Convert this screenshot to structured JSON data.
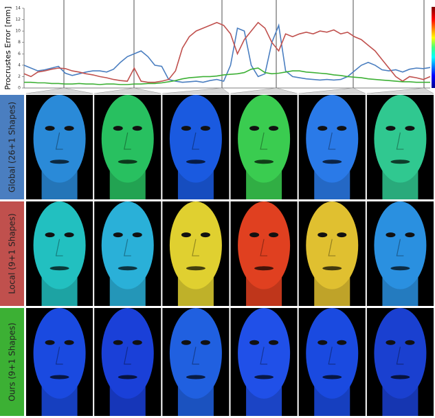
{
  "chart_data": {
    "type": "line",
    "y_label": "Procrustes Error [mm]",
    "ylim": [
      0,
      14
    ],
    "yticks": [
      0,
      2,
      4,
      6,
      8,
      10,
      12,
      14
    ],
    "series": [
      {
        "name": "Global (26+1 Shapes)",
        "color": "#4a7ec0",
        "values": [
          4.0,
          3.5,
          3.0,
          3.2,
          3.5,
          3.8,
          2.6,
          2.2,
          2.5,
          2.8,
          3.0,
          3.0,
          2.8,
          3.3,
          4.5,
          5.5,
          6.0,
          6.5,
          5.5,
          4.0,
          3.8,
          1.5,
          1.2,
          1.0,
          1.1,
          1.2,
          1.0,
          1.3,
          1.5,
          1.2,
          4.0,
          10.5,
          10.0,
          4.0,
          2.0,
          2.5,
          8.0,
          11.0,
          3.0,
          2.0,
          1.8,
          1.6,
          1.5,
          1.4,
          1.5,
          1.4,
          1.5,
          2.0,
          3.0,
          4.0,
          4.5,
          4.0,
          3.2,
          3.0,
          3.2,
          2.8,
          3.3,
          3.5,
          3.4,
          3.6
        ]
      },
      {
        "name": "Local (9+1 Shapes)",
        "color": "#c0504d",
        "values": [
          2.5,
          2.0,
          2.8,
          3.0,
          3.3,
          3.5,
          3.4,
          3.0,
          2.8,
          2.5,
          2.3,
          2.0,
          1.8,
          1.5,
          1.3,
          1.2,
          3.5,
          1.2,
          1.0,
          1.0,
          1.2,
          1.5,
          3.0,
          7.0,
          9.0,
          10.0,
          10.5,
          11.0,
          11.5,
          11.0,
          9.5,
          6.0,
          8.5,
          10.0,
          11.5,
          10.5,
          8.0,
          6.5,
          9.5,
          9.0,
          9.5,
          9.8,
          9.5,
          10.0,
          9.8,
          10.2,
          9.5,
          9.8,
          9.0,
          8.5,
          7.5,
          6.5,
          5.0,
          3.5,
          2.0,
          1.2,
          2.0,
          1.8,
          1.5,
          2.0
        ]
      },
      {
        "name": "Ours (9+1 Shapes)",
        "color": "#3cb034",
        "values": [
          1.0,
          1.0,
          0.9,
          0.9,
          0.8,
          0.8,
          0.7,
          0.7,
          0.8,
          0.7,
          0.7,
          0.6,
          0.7,
          0.7,
          0.6,
          0.6,
          0.7,
          0.7,
          0.8,
          0.8,
          0.9,
          1.1,
          1.3,
          1.6,
          1.8,
          1.9,
          2.0,
          2.0,
          2.1,
          2.3,
          2.4,
          2.5,
          2.7,
          3.3,
          3.5,
          2.7,
          2.5,
          2.6,
          2.8,
          3.0,
          3.0,
          2.8,
          2.7,
          2.6,
          2.5,
          2.3,
          2.2,
          2.0,
          1.9,
          1.8,
          1.6,
          1.5,
          1.4,
          1.3,
          1.2,
          1.1,
          1.1,
          1.0,
          1.0,
          1.0
        ]
      }
    ]
  }
}
